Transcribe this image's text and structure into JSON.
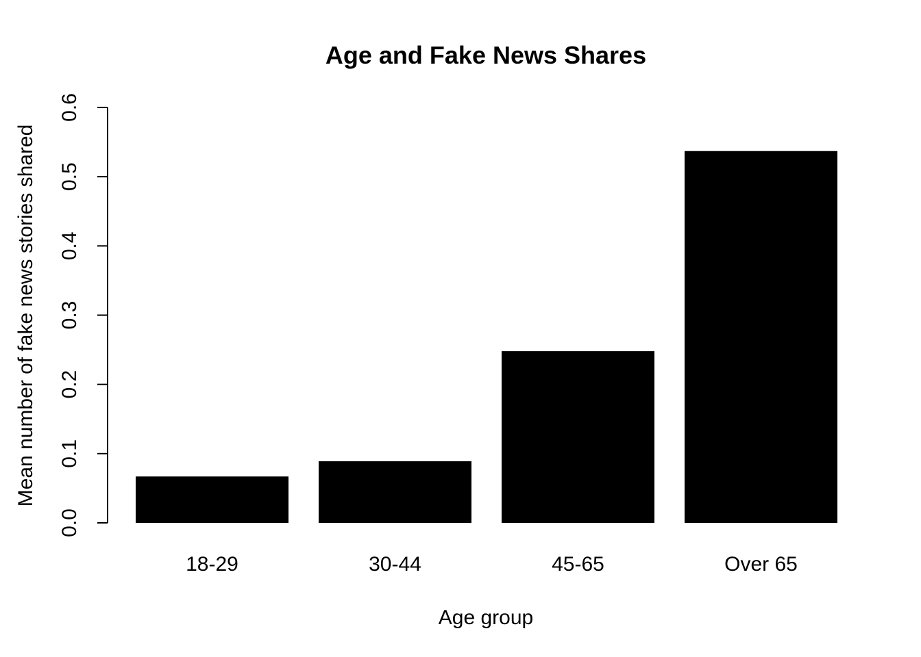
{
  "chart_data": {
    "type": "bar",
    "title": "Age and Fake News Shares",
    "xlabel": "Age group",
    "ylabel": "Mean number of fake news stories shared",
    "categories": [
      "18-29",
      "30-44",
      "45-65",
      "Over 65"
    ],
    "values": [
      0.067,
      0.089,
      0.248,
      0.537
    ],
    "ylim": [
      0,
      0.6
    ],
    "yticks": [
      0.0,
      0.1,
      0.2,
      0.3,
      0.4,
      0.5,
      0.6
    ],
    "ytick_labels": [
      "0.0",
      "0.1",
      "0.2",
      "0.3",
      "0.4",
      "0.5",
      "0.6"
    ],
    "bar_color": "#000000",
    "grid": false,
    "legend": "none"
  }
}
